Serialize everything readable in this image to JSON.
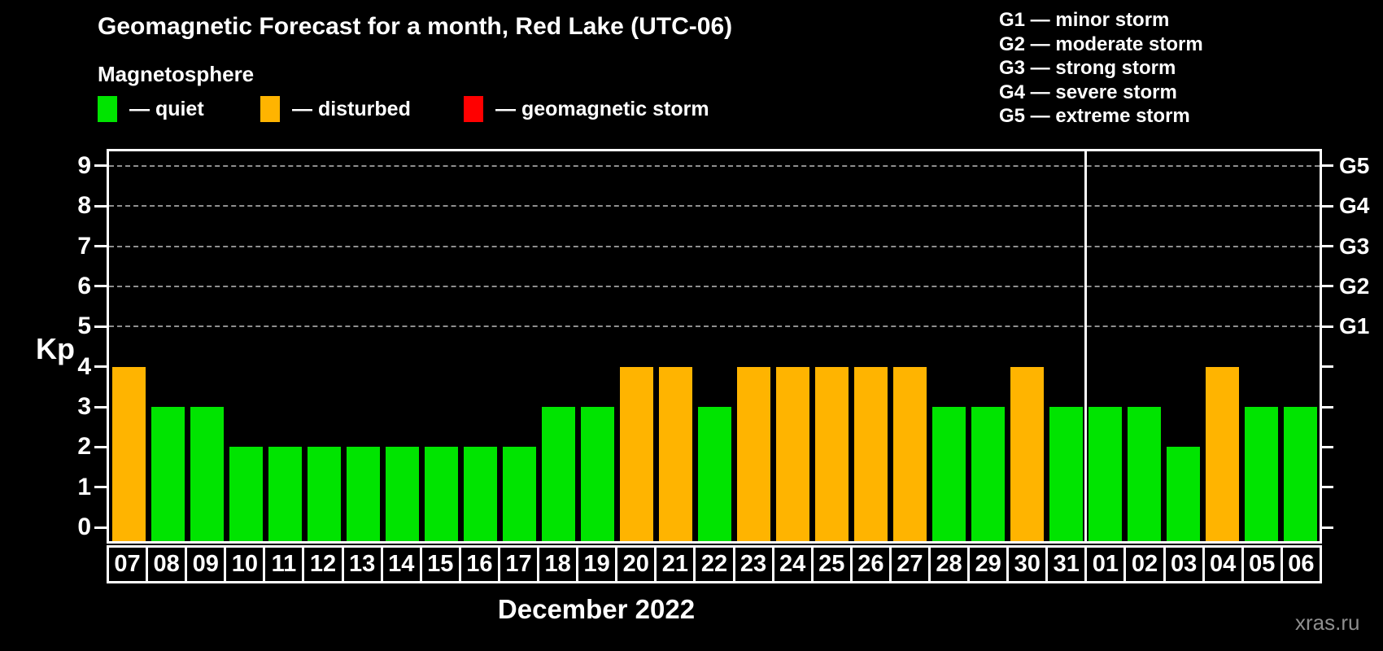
{
  "header": {
    "title": "Geomagnetic Forecast for a month, Red Lake (UTC-06)",
    "subtitle": "Magnetosphere"
  },
  "legend": {
    "items": [
      {
        "name": "quiet",
        "label": "— quiet",
        "color": "#00e400"
      },
      {
        "name": "disturbed",
        "label": "— disturbed",
        "color": "#ffb400"
      },
      {
        "name": "storm",
        "label": "— geomagnetic storm",
        "color": "#ff0000"
      }
    ]
  },
  "g_scale_legend": {
    "items": [
      "G1 — minor storm",
      "G2 — moderate storm",
      "G3 — strong storm",
      "G4 — severe storm",
      "G5 — extreme storm"
    ]
  },
  "watermark": "xras.ru",
  "chart_data": {
    "type": "bar",
    "title": "Geomagnetic Forecast for a month, Red Lake (UTC-06)",
    "xlabel": "December 2022",
    "ylabel": "Kp",
    "ylim": [
      0,
      9
    ],
    "y_ticks": [
      0,
      1,
      2,
      3,
      4,
      5,
      6,
      7,
      8,
      9
    ],
    "gridlines_at": [
      5,
      6,
      7,
      8,
      9
    ],
    "grid": true,
    "legend_position": "top",
    "right_axis_labels": [
      {
        "value": 5,
        "label": "G1"
      },
      {
        "value": 6,
        "label": "G2"
      },
      {
        "value": 7,
        "label": "G3"
      },
      {
        "value": 8,
        "label": "G4"
      },
      {
        "value": 9,
        "label": "G5"
      }
    ],
    "categories": [
      "07",
      "08",
      "09",
      "10",
      "11",
      "12",
      "13",
      "14",
      "15",
      "16",
      "17",
      "18",
      "19",
      "20",
      "21",
      "22",
      "23",
      "24",
      "25",
      "26",
      "27",
      "28",
      "29",
      "30",
      "31",
      "01",
      "02",
      "03",
      "04",
      "05",
      "06"
    ],
    "series": [
      {
        "name": "Kp forecast",
        "values": [
          4,
          3,
          3,
          2,
          2,
          2,
          2,
          2,
          2,
          2,
          2,
          3,
          3,
          4,
          4,
          3,
          4,
          4,
          4,
          4,
          4,
          3,
          3,
          4,
          3,
          3,
          3,
          2,
          4,
          3,
          3
        ]
      }
    ],
    "bar_status": [
      "disturbed",
      "quiet",
      "quiet",
      "quiet",
      "quiet",
      "quiet",
      "quiet",
      "quiet",
      "quiet",
      "quiet",
      "quiet",
      "quiet",
      "quiet",
      "disturbed",
      "disturbed",
      "quiet",
      "disturbed",
      "disturbed",
      "disturbed",
      "disturbed",
      "disturbed",
      "quiet",
      "quiet",
      "disturbed",
      "quiet",
      "quiet",
      "quiet",
      "quiet",
      "disturbed",
      "quiet",
      "quiet"
    ],
    "status_colors": {
      "quiet": "#00e400",
      "disturbed": "#ffb400",
      "storm": "#ff0000"
    },
    "month_separator_after_index": 24
  }
}
